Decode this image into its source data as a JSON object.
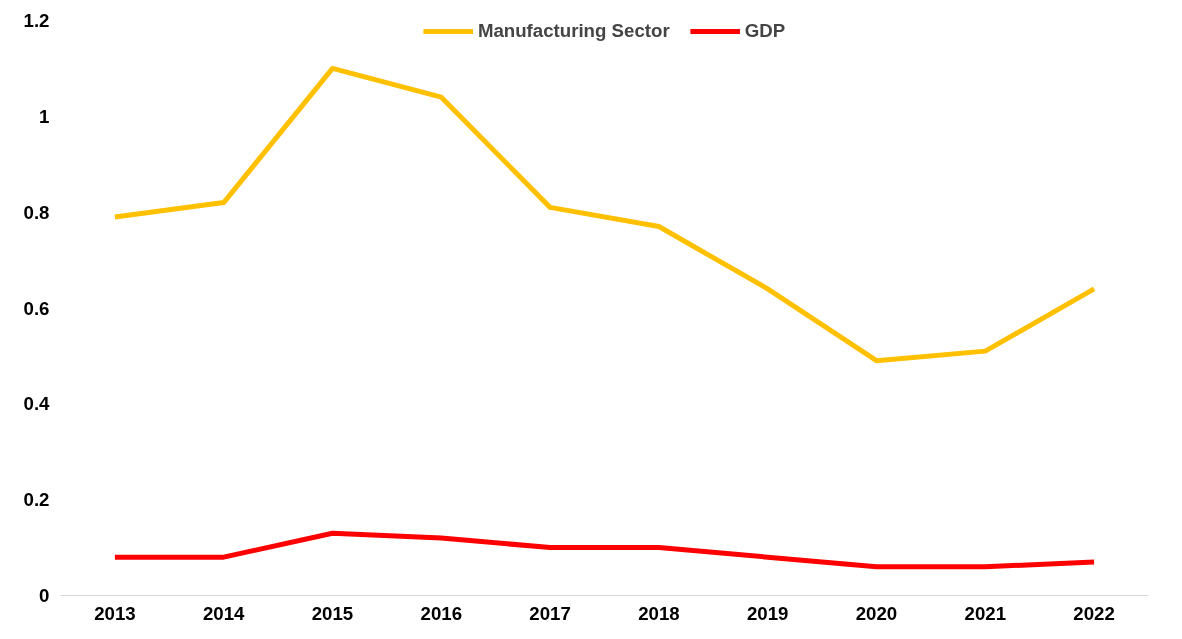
{
  "chart_data": {
    "type": "line",
    "categories": [
      "2013",
      "2014",
      "2015",
      "2016",
      "2017",
      "2018",
      "2019",
      "2020",
      "2021",
      "2022"
    ],
    "series": [
      {
        "name": "Manufacturing Sector",
        "color": "#ffc000",
        "values": [
          0.79,
          0.82,
          1.1,
          1.04,
          0.81,
          0.77,
          0.64,
          0.49,
          0.51,
          0.64
        ]
      },
      {
        "name": "GDP",
        "color": "#ff0000",
        "values": [
          0.08,
          0.08,
          0.13,
          0.12,
          0.1,
          0.1,
          0.08,
          0.06,
          0.06,
          0.07
        ]
      }
    ],
    "ylim": [
      0,
      1.2
    ],
    "yticks": [
      0,
      0.2,
      0.4,
      0.6,
      0.8,
      1,
      1.2
    ],
    "grid": false,
    "legend": "top",
    "marker": "none",
    "line_style": "solid"
  }
}
